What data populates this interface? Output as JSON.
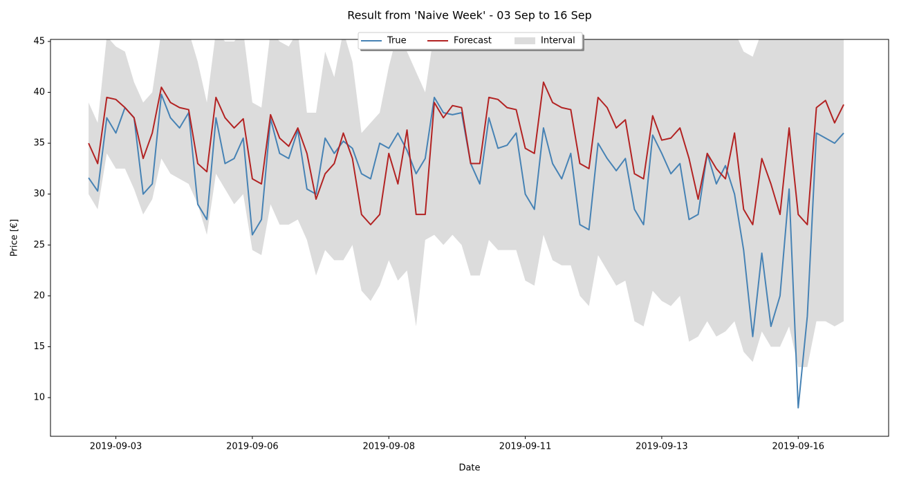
{
  "chart_data": {
    "type": "line",
    "title": "Result from 'Naive Week' - 03 Sep to 16 Sep",
    "xlabel": "Date",
    "ylabel": "Price [€]",
    "x": [
      "2019-09-03T00:00",
      "2019-09-03T04:00",
      "2019-09-03T08:00",
      "2019-09-03T12:00",
      "2019-09-03T16:00",
      "2019-09-03T20:00",
      "2019-09-04T00:00",
      "2019-09-04T04:00",
      "2019-09-04T08:00",
      "2019-09-04T12:00",
      "2019-09-04T16:00",
      "2019-09-04T20:00",
      "2019-09-05T00:00",
      "2019-09-05T04:00",
      "2019-09-05T08:00",
      "2019-09-05T12:00",
      "2019-09-05T16:00",
      "2019-09-05T20:00",
      "2019-09-06T00:00",
      "2019-09-06T04:00",
      "2019-09-06T08:00",
      "2019-09-06T12:00",
      "2019-09-06T16:00",
      "2019-09-06T20:00",
      "2019-09-07T00:00",
      "2019-09-07T04:00",
      "2019-09-07T08:00",
      "2019-09-07T12:00",
      "2019-09-07T16:00",
      "2019-09-07T20:00",
      "2019-09-08T00:00",
      "2019-09-08T04:00",
      "2019-09-08T08:00",
      "2019-09-08T12:00",
      "2019-09-08T16:00",
      "2019-09-08T20:00",
      "2019-09-09T00:00",
      "2019-09-09T04:00",
      "2019-09-09T08:00",
      "2019-09-09T12:00",
      "2019-09-09T16:00",
      "2019-09-09T20:00",
      "2019-09-10T00:00",
      "2019-09-10T04:00",
      "2019-09-10T08:00",
      "2019-09-10T12:00",
      "2019-09-10T16:00",
      "2019-09-10T20:00",
      "2019-09-11T00:00",
      "2019-09-11T04:00",
      "2019-09-11T08:00",
      "2019-09-11T12:00",
      "2019-09-11T16:00",
      "2019-09-11T20:00",
      "2019-09-12T00:00",
      "2019-09-12T04:00",
      "2019-09-12T08:00",
      "2019-09-12T12:00",
      "2019-09-12T16:00",
      "2019-09-12T20:00",
      "2019-09-13T00:00",
      "2019-09-13T04:00",
      "2019-09-13T08:00",
      "2019-09-13T12:00",
      "2019-09-13T16:00",
      "2019-09-13T20:00",
      "2019-09-14T00:00",
      "2019-09-14T04:00",
      "2019-09-14T08:00",
      "2019-09-14T12:00",
      "2019-09-14T16:00",
      "2019-09-14T20:00",
      "2019-09-15T00:00",
      "2019-09-15T04:00",
      "2019-09-15T08:00",
      "2019-09-15T12:00",
      "2019-09-15T16:00",
      "2019-09-15T20:00",
      "2019-09-16T00:00",
      "2019-09-16T04:00",
      "2019-09-16T08:00",
      "2019-09-16T12:00",
      "2019-09-16T16:00",
      "2019-09-16T20:00"
    ],
    "series": [
      {
        "name": "True",
        "color": "#4682b4",
        "values": [
          31.6,
          30.3,
          37.5,
          36.0,
          38.5,
          37.5,
          30.0,
          31.0,
          39.8,
          37.5,
          36.5,
          38.0,
          29.0,
          27.5,
          37.5,
          33.0,
          33.5,
          35.5,
          26.0,
          27.5,
          37.4,
          34.0,
          33.5,
          36.3,
          30.5,
          30.0,
          35.5,
          34.0,
          35.2,
          34.5,
          32.0,
          31.5,
          35.0,
          34.5,
          36.0,
          34.3,
          32.0,
          33.5,
          39.5,
          38.0,
          37.8,
          38.0,
          33.0,
          31.0,
          37.5,
          34.5,
          34.8,
          36.0,
          30.0,
          28.5,
          36.5,
          33.0,
          31.5,
          34.0,
          27.0,
          26.5,
          35.0,
          33.5,
          32.3,
          33.5,
          28.5,
          27.0,
          35.8,
          34.0,
          32.0,
          33.0,
          27.5,
          28.0,
          34.0,
          31.0,
          32.8,
          30.0,
          24.5,
          16.0,
          24.2,
          17.0,
          20.0,
          30.5,
          9.0,
          18.0,
          36.0,
          35.5,
          35.0,
          36.0
        ]
      },
      {
        "name": "Forecast",
        "color": "#b22222",
        "values": [
          35.0,
          33.0,
          39.5,
          39.3,
          38.5,
          37.5,
          33.5,
          36.0,
          40.5,
          39.0,
          38.5,
          38.3,
          33.0,
          32.2,
          39.5,
          37.5,
          36.5,
          37.4,
          31.5,
          31.0,
          37.8,
          35.5,
          34.7,
          36.5,
          34.0,
          29.5,
          32.0,
          33.0,
          36.0,
          33.5,
          28.0,
          27.0,
          28.0,
          34.0,
          31.0,
          36.3,
          28.0,
          28.0,
          39.0,
          37.5,
          38.7,
          38.5,
          33.0,
          33.0,
          39.5,
          39.3,
          38.5,
          38.3,
          34.5,
          34.0,
          41.0,
          39.0,
          38.5,
          38.3,
          33.0,
          32.5,
          39.5,
          38.5,
          36.5,
          37.3,
          32.0,
          31.5,
          37.7,
          35.3,
          35.5,
          36.5,
          33.5,
          29.5,
          34.0,
          32.5,
          31.5,
          36.0,
          28.5,
          27.0,
          33.5,
          31.0,
          28.0,
          36.5,
          28.0,
          27.0,
          38.5,
          39.2,
          37.0,
          38.8
        ]
      },
      {
        "name": "Interval",
        "color": "#dcdcdc",
        "lower": [
          30.0,
          28.5,
          34.0,
          32.5,
          32.5,
          30.5,
          28.0,
          29.5,
          33.5,
          32.0,
          31.5,
          31.0,
          29.0,
          26.0,
          32.0,
          30.5,
          29.0,
          30.0,
          24.5,
          24.0,
          29.0,
          27.0,
          27.0,
          27.5,
          25.5,
          22.0,
          24.5,
          23.5,
          23.5,
          25.0,
          20.5,
          19.5,
          21.0,
          23.5,
          21.5,
          22.5,
          17.0,
          25.5,
          26.0,
          25.0,
          26.0,
          25.0,
          22.0,
          22.0,
          25.5,
          24.5,
          24.5,
          24.5,
          21.5,
          21.0,
          26.0,
          23.5,
          23.0,
          23.0,
          20.0,
          19.0,
          24.0,
          22.5,
          21.0,
          21.5,
          17.5,
          17.0,
          20.5,
          19.5,
          19.0,
          20.0,
          15.5,
          16.0,
          17.5,
          16.0,
          16.5,
          17.5,
          14.5,
          13.5,
          16.5,
          15.0,
          15.0,
          17.0,
          13.0,
          13.0,
          17.5,
          17.5,
          17.0,
          17.5
        ],
        "upper": [
          39.0,
          37.0,
          45.5,
          44.5,
          44.0,
          41.0,
          39.0,
          40.0,
          46.0,
          46.0,
          46.0,
          46.0,
          43.0,
          39.0,
          46.0,
          45.0,
          45.0,
          46.0,
          39.0,
          38.5,
          46.0,
          45.0,
          44.5,
          46.0,
          38.0,
          38.0,
          44.0,
          41.5,
          46.0,
          43.0,
          36.0,
          37.0,
          38.0,
          42.5,
          46.0,
          44.0,
          42.0,
          40.0,
          46.0,
          46.0,
          46.0,
          46.0,
          46.0,
          46.0,
          46.0,
          46.0,
          46.0,
          46.0,
          46.0,
          46.0,
          46.0,
          46.0,
          46.0,
          46.0,
          46.0,
          46.0,
          46.0,
          46.0,
          46.0,
          46.0,
          46.0,
          46.0,
          46.0,
          46.0,
          46.0,
          46.0,
          46.0,
          46.0,
          46.0,
          46.0,
          46.0,
          46.0,
          44.0,
          43.5,
          46.0,
          46.0,
          46.0,
          46.0,
          46.0,
          46.0,
          46.0,
          46.0,
          46.0,
          46.0
        ]
      }
    ],
    "xlim": [
      "2019-09-02T07:15",
      "2019-09-17T15:45"
    ],
    "xticks": [
      {
        "value": "2019-09-03T12:00",
        "label": "2019-09-03"
      },
      {
        "value": "2019-09-06T00:00",
        "label": "2019-09-06"
      },
      {
        "value": "2019-09-08T12:00",
        "label": "2019-09-08"
      },
      {
        "value": "2019-09-11T00:00",
        "label": "2019-09-11"
      },
      {
        "value": "2019-09-13T12:00",
        "label": "2019-09-13"
      },
      {
        "value": "2019-09-16T00:00",
        "label": "2019-09-16"
      }
    ],
    "ylim": [
      6.2,
      45.2
    ],
    "yticks": [
      10,
      15,
      20,
      25,
      30,
      35,
      40,
      45
    ],
    "grid": false,
    "legend": "upper center"
  }
}
